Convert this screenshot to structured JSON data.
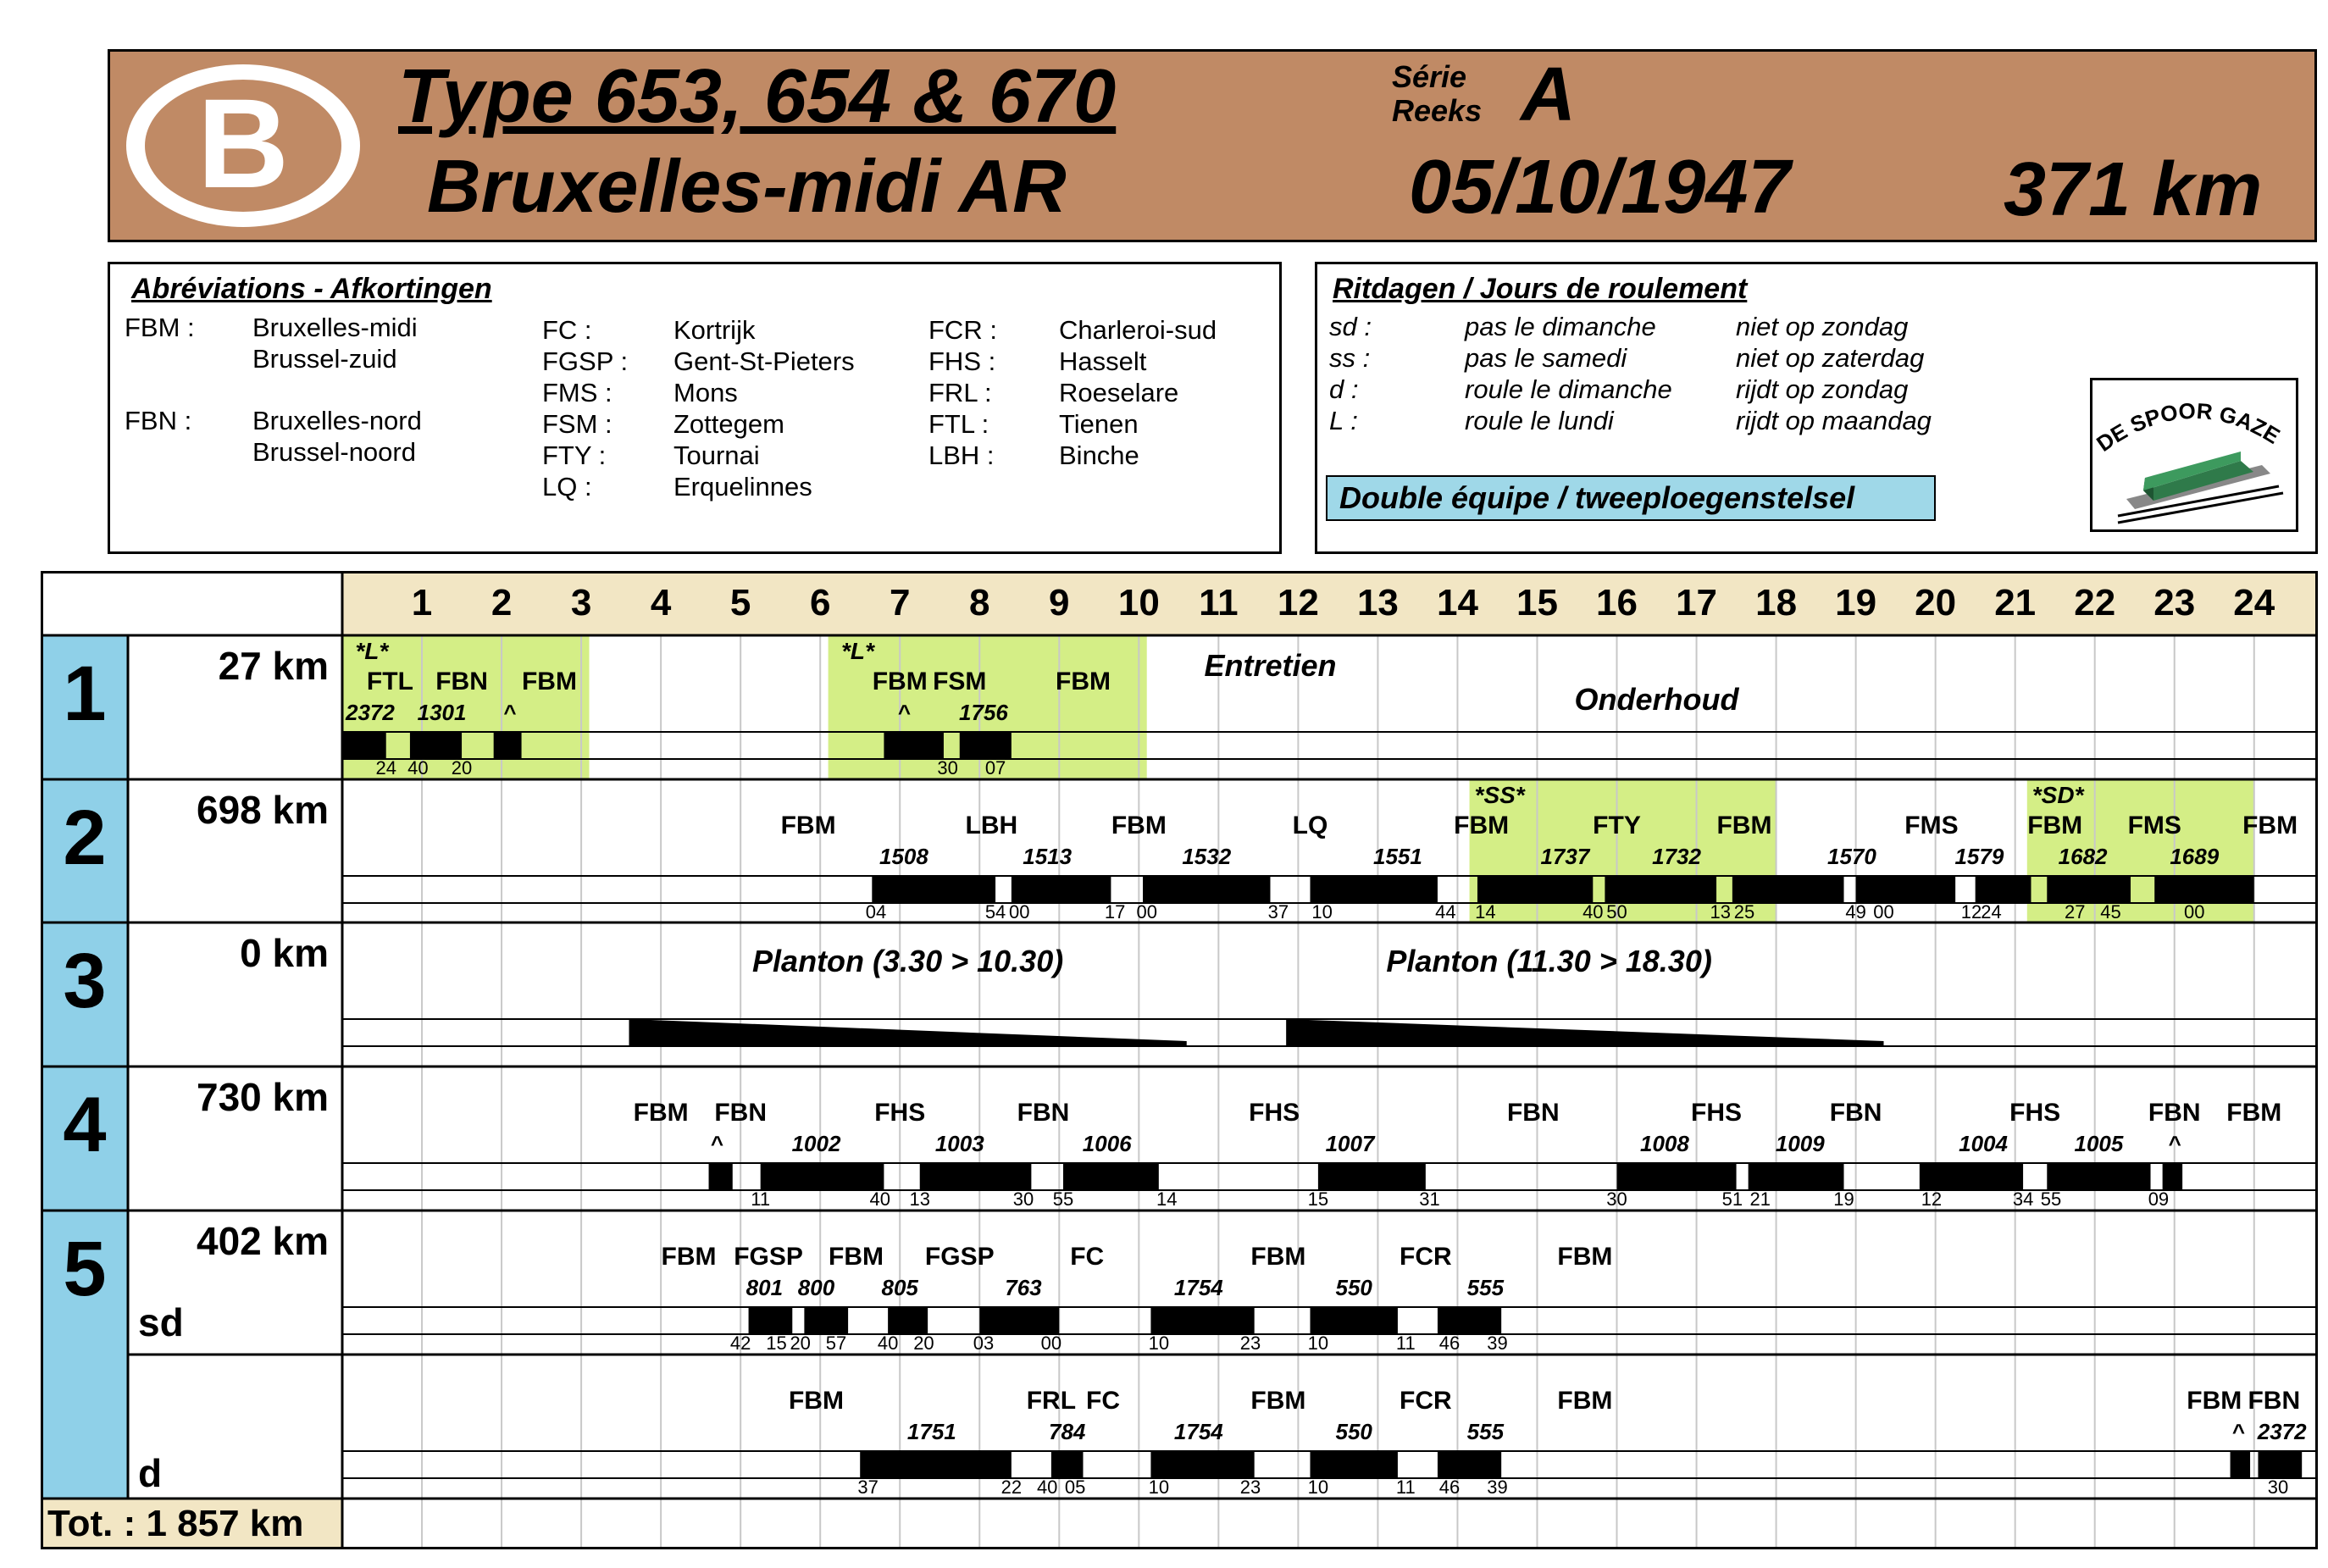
{
  "header": {
    "logo_letter": "B",
    "title": "Type 653, 654 & 670",
    "subtitle": "Bruxelles-midi AR",
    "serie_fr": "Série",
    "serie_nl": "Reeks",
    "serie_value": "A",
    "date": "05/10/1947",
    "distance": "371 km",
    "brand_color": "#c08a65"
  },
  "abbreviations": {
    "title": "Abréviations - Afkortingen",
    "entries": [
      {
        "code": "FBM :",
        "name": "Bruxelles-midi"
      },
      {
        "code": "",
        "name": "Brussel-zuid"
      },
      {
        "code": "FBN :",
        "name": "Bruxelles-nord"
      },
      {
        "code": "",
        "name": "Brussel-noord"
      },
      {
        "code": "FC :",
        "name": "Kortrijk"
      },
      {
        "code": "FGSP :",
        "name": "Gent-St-Pieters"
      },
      {
        "code": "FMS :",
        "name": "Mons"
      },
      {
        "code": "FSM :",
        "name": "Zottegem"
      },
      {
        "code": "FTY :",
        "name": "Tournai"
      },
      {
        "code": "LQ :",
        "name": "Erquelinnes"
      },
      {
        "code": "FCR :",
        "name": "Charleroi-sud"
      },
      {
        "code": "FHS :",
        "name": "Hasselt"
      },
      {
        "code": "FRL :",
        "name": "Roeselare"
      },
      {
        "code": "FTL :",
        "name": "Tienen"
      },
      {
        "code": "LBH :",
        "name": "Binche"
      }
    ]
  },
  "ritdagen": {
    "title": "Ritdagen  /  Jours de roulement",
    "entries": [
      {
        "code": "sd :",
        "fr": "pas le dimanche",
        "nl": "niet op zondag"
      },
      {
        "code": "ss :",
        "fr": "pas le samedi",
        "nl": "niet op zaterdag"
      },
      {
        "code": "d :",
        "fr": "roule le dimanche",
        "nl": "rijdt op zondag"
      },
      {
        "code": "L :",
        "fr": "roule le lundi",
        "nl": "rijdt op maandag"
      }
    ],
    "double_label": "Double équipe   /   tweeploegenstelsel",
    "double_color": "#9fd8e8",
    "logo_text": "DE SPOOR GAZET"
  },
  "schedule": {
    "hours": [
      "1",
      "2",
      "3",
      "4",
      "5",
      "6",
      "7",
      "8",
      "9",
      "10",
      "11",
      "12",
      "13",
      "14",
      "15",
      "16",
      "17",
      "18",
      "19",
      "20",
      "21",
      "22",
      "23",
      "24"
    ],
    "rows": [
      {
        "num": "1",
        "km": "27 km",
        "sub": ""
      },
      {
        "num": "2",
        "km": "698 km",
        "sub": ""
      },
      {
        "num": "3",
        "km": "0 km",
        "sub": ""
      },
      {
        "num": "4",
        "km": "730 km",
        "sub": ""
      },
      {
        "num": "5",
        "km": "402 km",
        "sub": "sd"
      },
      {
        "num": "",
        "km": "",
        "sub": "d"
      }
    ],
    "total": "Tot. : 1 857 km",
    "colors": {
      "hours_bg": "#f2e6c4",
      "numcol_bg": "#8fd0e8",
      "highlight": "#d4ee86",
      "total_bg": "#f2e6c4"
    },
    "row1": {
      "highlights": [
        {
          "from": 0,
          "to": 3.1
        },
        {
          "from": 6.1,
          "to": 10.1
        }
      ],
      "bars": [
        {
          "from": 0,
          "to": 0.55
        },
        {
          "from": 0.85,
          "to": 1.5
        },
        {
          "from": 1.9,
          "to": 2.25
        },
        {
          "from": 6.8,
          "to": 7.55
        },
        {
          "from": 7.75,
          "to": 8.4
        }
      ],
      "tags": [
        {
          "t": "*L*",
          "h": 0.1
        },
        {
          "t": "*L*",
          "h": 6.2
        }
      ],
      "stations": [
        {
          "t": "FTL",
          "h": 0.6
        },
        {
          "t": "FBN",
          "h": 1.5
        },
        {
          "t": "FBM",
          "h": 2.6
        },
        {
          "t": "FBM",
          "h": 7.0
        },
        {
          "t": "FSM",
          "h": 7.75
        },
        {
          "t": "FBM",
          "h": 9.3
        }
      ],
      "trains": [
        {
          "t": "2372",
          "h": 0.35
        },
        {
          "t": "1301",
          "h": 1.25
        },
        {
          "t": "^",
          "h": 2.1
        },
        {
          "t": "^",
          "h": 7.05
        },
        {
          "t": "1756",
          "h": 8.05
        }
      ],
      "times": [
        {
          "t": "24",
          "h": 0.55
        },
        {
          "t": "40",
          "h": 0.95
        },
        {
          "t": "20",
          "h": 1.5
        },
        {
          "t": "30",
          "h": 7.6
        },
        {
          "t": "07",
          "h": 8.2
        }
      ],
      "notes": [
        {
          "t": "Entretien",
          "h": 11.65,
          "row": "top"
        },
        {
          "t": "Onderhoud",
          "h": 16.5,
          "row": "mid"
        }
      ]
    },
    "row2": {
      "highlights": [
        {
          "from": 14.15,
          "to": 18.0
        },
        {
          "from": 21.15,
          "to": 24.0
        }
      ],
      "bars": [
        {
          "from": 6.65,
          "to": 8.2
        },
        {
          "from": 8.4,
          "to": 9.65
        },
        {
          "from": 10.05,
          "to": 11.65
        },
        {
          "from": 12.15,
          "to": 13.75
        },
        {
          "from": 14.25,
          "to": 15.7
        },
        {
          "from": 15.85,
          "to": 17.25
        },
        {
          "from": 17.45,
          "to": 18.85
        },
        {
          "from": 19.0,
          "to": 20.25
        },
        {
          "from": 20.5,
          "to": 21.2
        },
        {
          "from": 21.4,
          "to": 22.45
        },
        {
          "from": 22.75,
          "to": 24.0
        }
      ],
      "tags": [
        {
          "t": "*SS*",
          "h": 14.15
        },
        {
          "t": "*SD*",
          "h": 21.15
        }
      ],
      "stations": [
        {
          "t": "FBM",
          "h": 5.85
        },
        {
          "t": "LBH",
          "h": 8.15
        },
        {
          "t": "FBM",
          "h": 10.0
        },
        {
          "t": "LQ",
          "h": 12.15
        },
        {
          "t": "FBM",
          "h": 14.3
        },
        {
          "t": "FTY",
          "h": 16.0
        },
        {
          "t": "FBM",
          "h": 17.6
        },
        {
          "t": "FMS",
          "h": 19.95
        },
        {
          "t": "FBM",
          "h": 21.5
        },
        {
          "t": "FMS",
          "h": 22.75
        },
        {
          "t": "FBM",
          "h": 24.2
        }
      ],
      "trains": [
        {
          "t": "1508",
          "h": 7.05
        },
        {
          "t": "1513",
          "h": 8.85
        },
        {
          "t": "1532",
          "h": 10.85
        },
        {
          "t": "1551",
          "h": 13.25
        },
        {
          "t": "1737",
          "h": 15.35
        },
        {
          "t": "1732",
          "h": 16.75
        },
        {
          "t": "1570",
          "h": 18.95
        },
        {
          "t": "1579",
          "h": 20.55
        },
        {
          "t": "1682",
          "h": 21.85
        },
        {
          "t": "1689",
          "h": 23.25
        }
      ],
      "times": [
        {
          "t": "04",
          "h": 6.7
        },
        {
          "t": "54",
          "h": 8.2
        },
        {
          "t": "00",
          "h": 8.5
        },
        {
          "t": "17",
          "h": 9.7
        },
        {
          "t": "00",
          "h": 10.1
        },
        {
          "t": "37",
          "h": 11.75
        },
        {
          "t": "10",
          "h": 12.3
        },
        {
          "t": "44",
          "h": 13.85
        },
        {
          "t": "14",
          "h": 14.35
        },
        {
          "t": "40",
          "h": 15.7
        },
        {
          "t": "50",
          "h": 16.0
        },
        {
          "t": "13",
          "h": 17.3
        },
        {
          "t": "25",
          "h": 17.6
        },
        {
          "t": "49",
          "h": 19.0
        },
        {
          "t": "00",
          "h": 19.35
        },
        {
          "t": "12",
          "h": 20.45
        },
        {
          "t": "24",
          "h": 20.7
        },
        {
          "t": "27",
          "h": 21.75
        },
        {
          "t": "45",
          "h": 22.2
        },
        {
          "t": "00",
          "h": 23.25
        }
      ]
    },
    "row3": {
      "notes": [
        {
          "t": "Planton  (3.30 > 10.30)",
          "h": 7.1
        },
        {
          "t": "Planton  (11.30  >  18.30)",
          "h": 15.15
        }
      ],
      "wedges": [
        {
          "from": 3.6,
          "to": 10.6
        },
        {
          "from": 11.85,
          "to": 19.35
        }
      ]
    },
    "row4": {
      "bars": [
        {
          "from": 4.6,
          "to": 4.9
        },
        {
          "from": 5.25,
          "to": 6.8
        },
        {
          "from": 7.25,
          "to": 8.65
        },
        {
          "from": 9.05,
          "to": 10.25
        },
        {
          "from": 12.25,
          "to": 13.6
        },
        {
          "from": 16.0,
          "to": 17.5
        },
        {
          "from": 17.65,
          "to": 18.85
        },
        {
          "from": 19.8,
          "to": 21.1
        },
        {
          "from": 21.4,
          "to": 22.7
        },
        {
          "from": 22.85,
          "to": 23.1
        }
      ],
      "stations": [
        {
          "t": "FBM",
          "h": 4.0
        },
        {
          "t": "FBN",
          "h": 5.0
        },
        {
          "t": "FHS",
          "h": 7.0
        },
        {
          "t": "FBN",
          "h": 8.8
        },
        {
          "t": "FHS",
          "h": 11.7
        },
        {
          "t": "FBN",
          "h": 14.95
        },
        {
          "t": "FHS",
          "h": 17.25
        },
        {
          "t": "FBN",
          "h": 19.0
        },
        {
          "t": "FHS",
          "h": 21.25
        },
        {
          "t": "FBN",
          "h": 23.0
        },
        {
          "t": "FBM",
          "h": 24.0
        }
      ],
      "trains": [
        {
          "t": "^",
          "h": 4.7
        },
        {
          "t": "1002",
          "h": 5.95
        },
        {
          "t": "1003",
          "h": 7.75
        },
        {
          "t": "1006",
          "h": 9.6
        },
        {
          "t": "1007",
          "h": 12.65
        },
        {
          "t": "1008",
          "h": 16.6
        },
        {
          "t": "1009",
          "h": 18.3
        },
        {
          "t": "1004",
          "h": 20.6
        },
        {
          "t": "1005",
          "h": 22.05
        },
        {
          "t": "^",
          "h": 23.0
        }
      ],
      "times": [
        {
          "t": "11",
          "h": 5.25
        },
        {
          "t": "40",
          "h": 6.75
        },
        {
          "t": "13",
          "h": 7.25
        },
        {
          "t": "30",
          "h": 8.55
        },
        {
          "t": "55",
          "h": 9.05
        },
        {
          "t": "14",
          "h": 10.35
        },
        {
          "t": "15",
          "h": 12.25
        },
        {
          "t": "31",
          "h": 13.65
        },
        {
          "t": "30",
          "h": 16.0
        },
        {
          "t": "51",
          "h": 17.45
        },
        {
          "t": "21",
          "h": 17.8
        },
        {
          "t": "19",
          "h": 18.85
        },
        {
          "t": "12",
          "h": 19.95
        },
        {
          "t": "34",
          "h": 21.1
        },
        {
          "t": "55",
          "h": 21.45
        },
        {
          "t": "09",
          "h": 22.8
        }
      ]
    },
    "row5": {
      "bars": [
        {
          "from": 5.1,
          "to": 5.65
        },
        {
          "from": 5.8,
          "to": 6.35
        },
        {
          "from": 6.85,
          "to": 7.35
        },
        {
          "from": 8.0,
          "to": 9.0
        },
        {
          "from": 10.15,
          "to": 11.45
        },
        {
          "from": 12.15,
          "to": 13.25
        },
        {
          "from": 13.75,
          "to": 14.55
        }
      ],
      "stations": [
        {
          "t": "FBM",
          "h": 4.35
        },
        {
          "t": "FGSP",
          "h": 5.35
        },
        {
          "t": "FBM",
          "h": 6.45
        },
        {
          "t": "FGSP",
          "h": 7.75
        },
        {
          "t": "FC",
          "h": 9.35
        },
        {
          "t": "FBM",
          "h": 11.75
        },
        {
          "t": "FCR",
          "h": 13.6
        },
        {
          "t": "FBM",
          "h": 15.6
        }
      ],
      "trains": [
        {
          "t": "801",
          "h": 5.3
        },
        {
          "t": "800",
          "h": 5.95
        },
        {
          "t": "805",
          "h": 7.0
        },
        {
          "t": "763",
          "h": 8.55
        },
        {
          "t": "1754",
          "h": 10.75
        },
        {
          "t": "550",
          "h": 12.7
        },
        {
          "t": "555",
          "h": 14.35
        }
      ],
      "times": [
        {
          "t": "42",
          "h": 5.0
        },
        {
          "t": "15",
          "h": 5.45
        },
        {
          "t": "20",
          "h": 5.75
        },
        {
          "t": "57",
          "h": 6.2
        },
        {
          "t": "40",
          "h": 6.85
        },
        {
          "t": "20",
          "h": 7.3
        },
        {
          "t": "03",
          "h": 8.05
        },
        {
          "t": "00",
          "h": 8.9
        },
        {
          "t": "10",
          "h": 10.25
        },
        {
          "t": "23",
          "h": 11.4
        },
        {
          "t": "10",
          "h": 12.25
        },
        {
          "t": "11",
          "h": 13.35
        },
        {
          "t": "46",
          "h": 13.9
        },
        {
          "t": "39",
          "h": 14.5
        }
      ]
    },
    "row6": {
      "bars": [
        {
          "from": 6.5,
          "to": 8.4
        },
        {
          "from": 8.9,
          "to": 9.3
        },
        {
          "from": 10.15,
          "to": 11.45
        },
        {
          "from": 12.15,
          "to": 13.25
        },
        {
          "from": 13.75,
          "to": 14.55
        },
        {
          "from": 23.7,
          "to": 23.95
        },
        {
          "from": 24.05,
          "to": 24.6
        }
      ],
      "stations": [
        {
          "t": "FBM",
          "h": 5.95
        },
        {
          "t": "FRL",
          "h": 8.9
        },
        {
          "t": "FC",
          "h": 9.55
        },
        {
          "t": "FBM",
          "h": 11.75
        },
        {
          "t": "FCR",
          "h": 13.6
        },
        {
          "t": "FBM",
          "h": 15.6
        },
        {
          "t": "FBM",
          "h": 23.5
        },
        {
          "t": "FBN",
          "h": 24.25
        }
      ],
      "trains": [
        {
          "t": "1751",
          "h": 7.4
        },
        {
          "t": "784",
          "h": 9.1
        },
        {
          "t": "1754",
          "h": 10.75
        },
        {
          "t": "550",
          "h": 12.7
        },
        {
          "t": "555",
          "h": 14.35
        },
        {
          "t": "^",
          "h": 23.8
        },
        {
          "t": "2372",
          "h": 24.35
        }
      ],
      "times": [
        {
          "t": "37",
          "h": 6.6
        },
        {
          "t": "22",
          "h": 8.4
        },
        {
          "t": "40",
          "h": 8.85
        },
        {
          "t": "05",
          "h": 9.2
        },
        {
          "t": "10",
          "h": 10.25
        },
        {
          "t": "23",
          "h": 11.4
        },
        {
          "t": "10",
          "h": 12.25
        },
        {
          "t": "11",
          "h": 13.35
        },
        {
          "t": "46",
          "h": 13.9
        },
        {
          "t": "39",
          "h": 14.5
        },
        {
          "t": "30",
          "h": 24.3
        }
      ]
    }
  }
}
